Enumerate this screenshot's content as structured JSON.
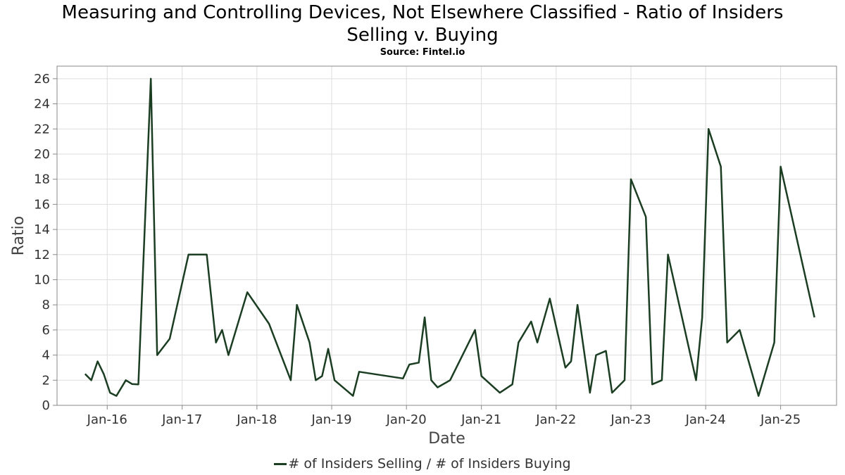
{
  "title_line1": "Measuring and Controlling Devices, Not Elsewhere Classified - Ratio of Insiders",
  "title_line2": "Selling v. Buying",
  "subtitle": "Source: Fintel.io",
  "colors": {
    "line": "#1b3d22",
    "grid": "#dddddd",
    "frame": "#888888"
  },
  "chart_data": {
    "type": "line",
    "xlabel": "Date",
    "ylabel": "Ratio",
    "grid": true,
    "legend_placement": "bottom-center",
    "ylim": [
      0,
      27
    ],
    "xlim": [
      "2015-05-01",
      "2025-10-01"
    ],
    "x_ticks": [
      "2016-01-01",
      "2017-01-01",
      "2018-01-01",
      "2019-01-01",
      "2020-01-01",
      "2021-01-01",
      "2022-01-01",
      "2023-01-01",
      "2024-01-01",
      "2025-01-01"
    ],
    "x_tick_labels": [
      "Jan-16",
      "Jan-17",
      "Jan-18",
      "Jan-19",
      "Jan-20",
      "Jan-21",
      "Jan-22",
      "Jan-23",
      "Jan-24",
      "Jan-25"
    ],
    "y_ticks": [
      0,
      2,
      4,
      6,
      8,
      10,
      12,
      14,
      16,
      18,
      20,
      22,
      24,
      26
    ],
    "series": [
      {
        "name": "# of Insiders Selling / # of Insiders Buying",
        "points": [
          [
            "2015-09-15",
            2.5
          ],
          [
            "2015-10-15",
            2.0
          ],
          [
            "2015-11-15",
            3.5
          ],
          [
            "2015-12-15",
            2.5
          ],
          [
            "2016-01-15",
            1.0
          ],
          [
            "2016-02-15",
            0.75
          ],
          [
            "2016-04-01",
            2.0
          ],
          [
            "2016-05-01",
            1.7
          ],
          [
            "2016-06-01",
            1.67
          ],
          [
            "2016-08-01",
            26.0
          ],
          [
            "2016-09-01",
            4.0
          ],
          [
            "2016-11-01",
            5.3
          ],
          [
            "2017-02-01",
            12.0
          ],
          [
            "2017-05-01",
            12.0
          ],
          [
            "2017-06-15",
            5.0
          ],
          [
            "2017-07-15",
            6.0
          ],
          [
            "2017-08-15",
            4.0
          ],
          [
            "2017-11-15",
            9.0
          ],
          [
            "2018-03-01",
            6.5
          ],
          [
            "2018-06-15",
            2.0
          ],
          [
            "2018-07-15",
            8.0
          ],
          [
            "2018-09-15",
            5.0
          ],
          [
            "2018-10-15",
            2.0
          ],
          [
            "2018-11-15",
            2.33
          ],
          [
            "2018-12-15",
            4.5
          ],
          [
            "2019-01-15",
            2.0
          ],
          [
            "2019-04-15",
            0.75
          ],
          [
            "2019-05-15",
            2.67
          ],
          [
            "2019-12-15",
            2.14
          ],
          [
            "2020-01-15",
            3.25
          ],
          [
            "2020-03-01",
            3.4
          ],
          [
            "2020-03-30",
            7.0
          ],
          [
            "2020-05-01",
            2.0
          ],
          [
            "2020-06-01",
            1.43
          ],
          [
            "2020-08-01",
            2.0
          ],
          [
            "2020-12-01",
            6.0
          ],
          [
            "2021-01-01",
            2.33
          ],
          [
            "2021-04-01",
            1.0
          ],
          [
            "2021-06-01",
            1.67
          ],
          [
            "2021-07-01",
            5.0
          ],
          [
            "2021-09-01",
            6.67
          ],
          [
            "2021-10-01",
            5.0
          ],
          [
            "2021-12-01",
            8.5
          ],
          [
            "2022-02-15",
            3.0
          ],
          [
            "2022-03-15",
            3.5
          ],
          [
            "2022-04-15",
            8.0
          ],
          [
            "2022-06-15",
            1.0
          ],
          [
            "2022-07-15",
            4.0
          ],
          [
            "2022-09-01",
            4.33
          ],
          [
            "2022-10-01",
            1.0
          ],
          [
            "2022-12-01",
            2.0
          ],
          [
            "2023-01-01",
            18.0
          ],
          [
            "2023-03-15",
            15.0
          ],
          [
            "2023-04-15",
            1.67
          ],
          [
            "2023-06-01",
            2.0
          ],
          [
            "2023-07-01",
            12.0
          ],
          [
            "2023-11-15",
            2.0
          ],
          [
            "2023-12-15",
            7.0
          ],
          [
            "2024-01-15",
            22.0
          ],
          [
            "2024-03-15",
            19.0
          ],
          [
            "2024-04-15",
            5.0
          ],
          [
            "2024-06-15",
            6.0
          ],
          [
            "2024-09-15",
            0.75
          ],
          [
            "2024-12-01",
            5.0
          ],
          [
            "2025-01-01",
            19.0
          ],
          [
            "2025-06-15",
            7.0
          ]
        ]
      }
    ]
  }
}
